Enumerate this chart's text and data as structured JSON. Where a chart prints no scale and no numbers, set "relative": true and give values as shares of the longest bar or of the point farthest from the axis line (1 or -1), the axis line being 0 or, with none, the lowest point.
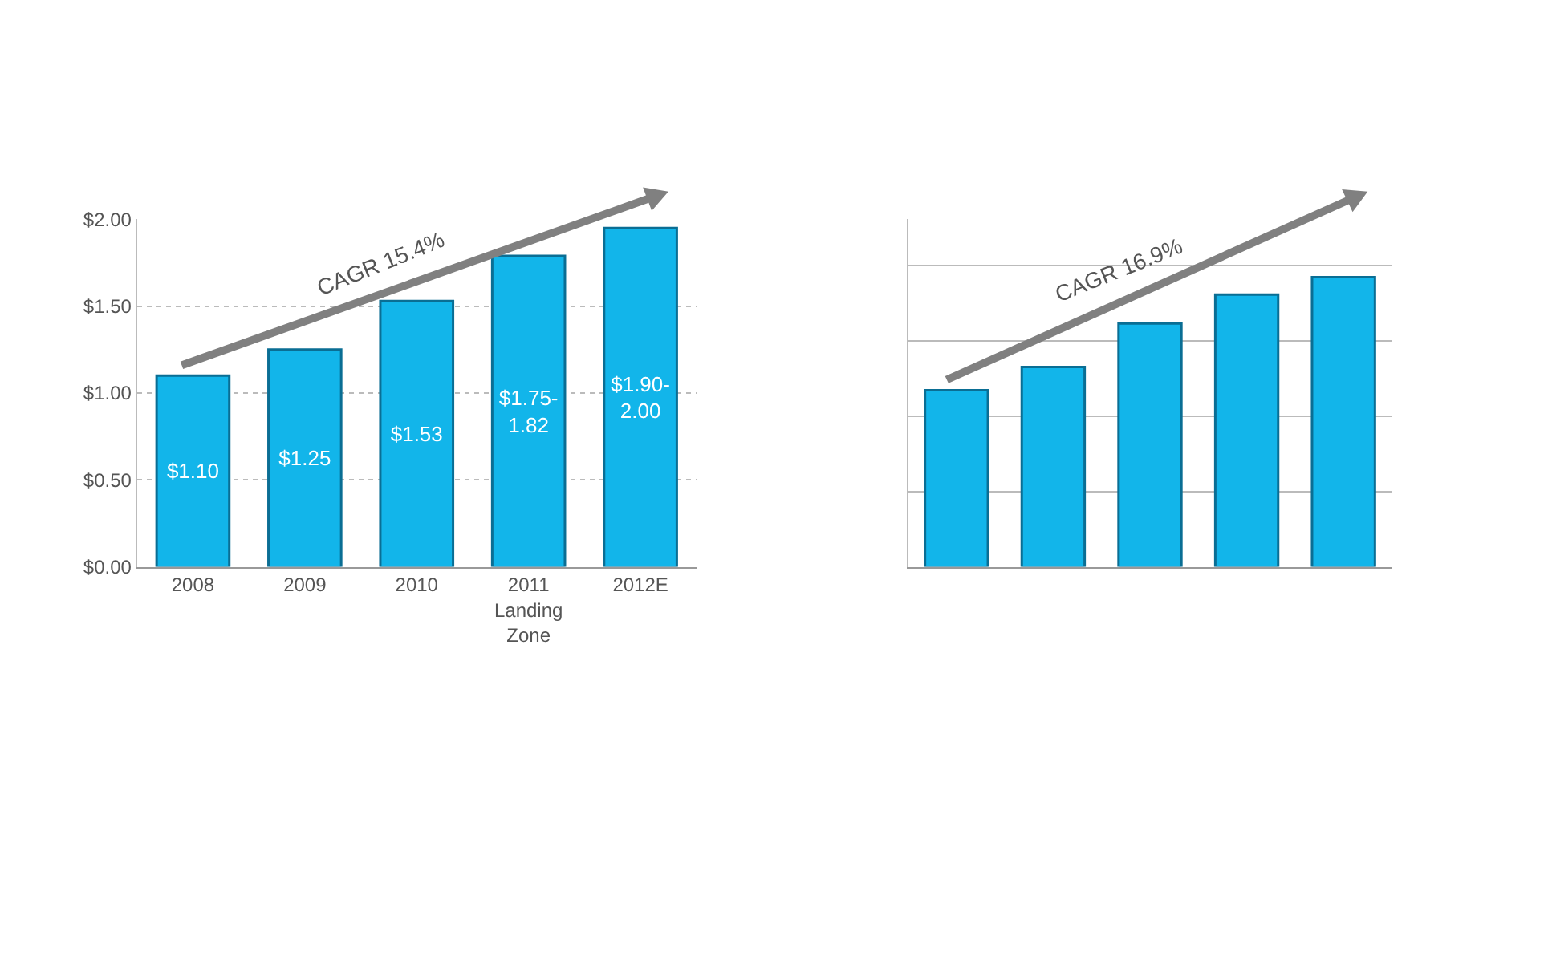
{
  "chart_data": [
    {
      "type": "bar",
      "categories": [
        "2008",
        "2009",
        "2010",
        "2011\nLanding\nZone",
        "2012E"
      ],
      "values": [
        1.1,
        1.25,
        1.53,
        1.79,
        1.95
      ],
      "value_labels": [
        "$1.10",
        "$1.25",
        "$1.53",
        "$1.75-\n1.82",
        "$1.90-\n2.00"
      ],
      "color": "#12b5ea",
      "ylim": [
        0,
        2.0
      ],
      "yticks": [
        {
          "value": 0,
          "label": "$0.00"
        },
        {
          "value": 0.5,
          "label": "$0.50"
        },
        {
          "value": 1.0,
          "label": "$1.00"
        },
        {
          "value": 1.5,
          "label": "$1.50"
        },
        {
          "value": 2.0,
          "label": "$2.00"
        }
      ],
      "grid": "y",
      "annotations": [
        "CAGR 15.4%"
      ]
    },
    {
      "type": "bar",
      "categories": [
        null,
        null,
        null,
        null,
        null
      ],
      "relative": true,
      "values": [
        0.61,
        0.69,
        0.84,
        0.94,
        1.0
      ],
      "color": "#12b5ea",
      "grid": "y",
      "annotations": [
        "CAGR 16.9%"
      ]
    }
  ]
}
